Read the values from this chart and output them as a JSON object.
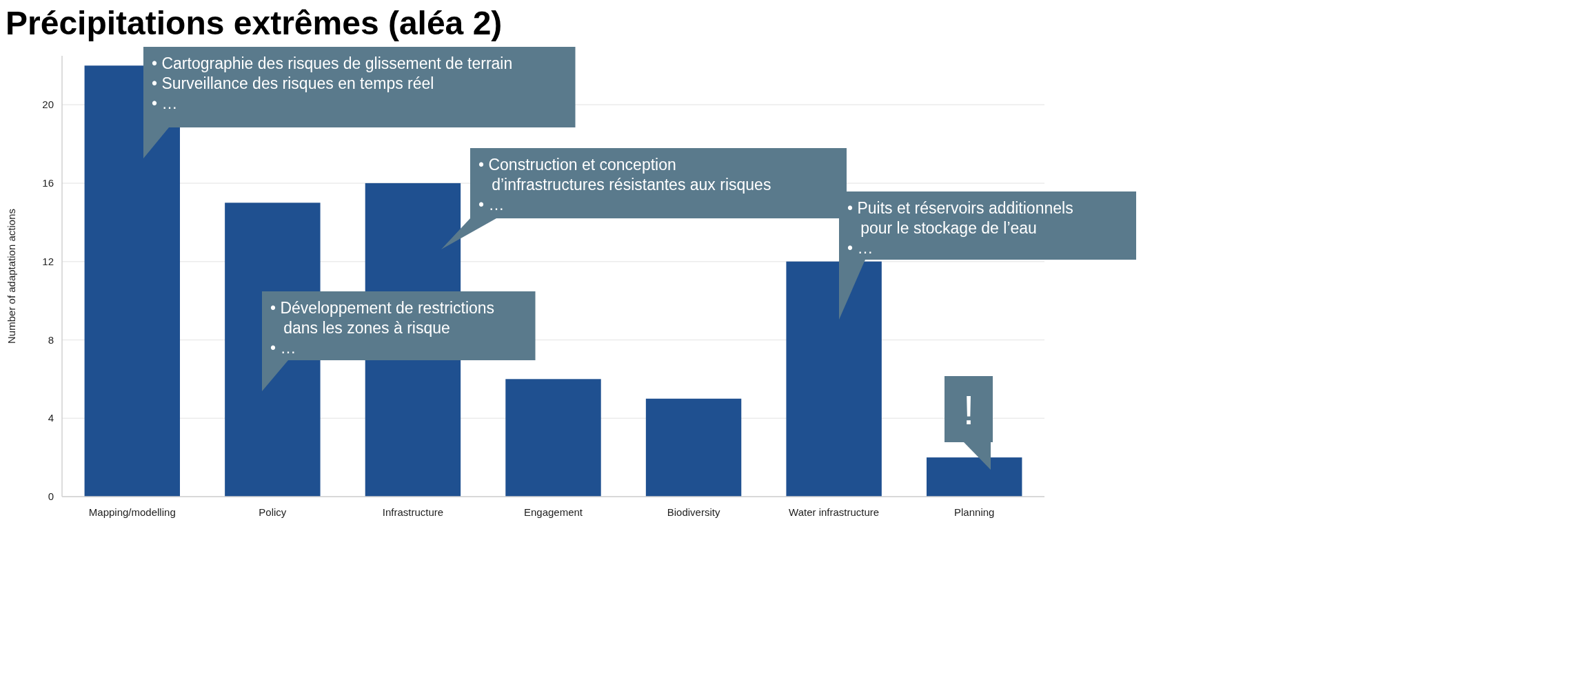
{
  "chart_data": {
    "type": "bar",
    "title": "Précipitations extrêmes (aléa 2)",
    "ylabel": "Number of adaptation actions",
    "categories": [
      "Mapping/modelling",
      "Policy",
      "Infrastructure",
      "Engagement",
      "Biodiversity",
      "Water infrastructure",
      "Planning"
    ],
    "values": [
      22,
      15,
      16,
      6,
      5,
      12,
      2
    ],
    "color": "#1f5090",
    "ylim": [
      0,
      22.5
    ],
    "yticks": [
      0,
      4,
      8,
      12,
      16,
      20
    ],
    "grid": "y",
    "annotations": [
      "• Cartographie des risques de glissement de terrain\n• Surveillance des risques en temps réel\n• …",
      "• Construction et conception\n   d’infrastructures résistantes aux risques\n• …",
      "• Développement de restrictions\n   dans les zones à risque\n• …",
      "• Puits et réservoirs additionnels\n   pour le stockage de l’eau\n• …",
      "!"
    ]
  }
}
